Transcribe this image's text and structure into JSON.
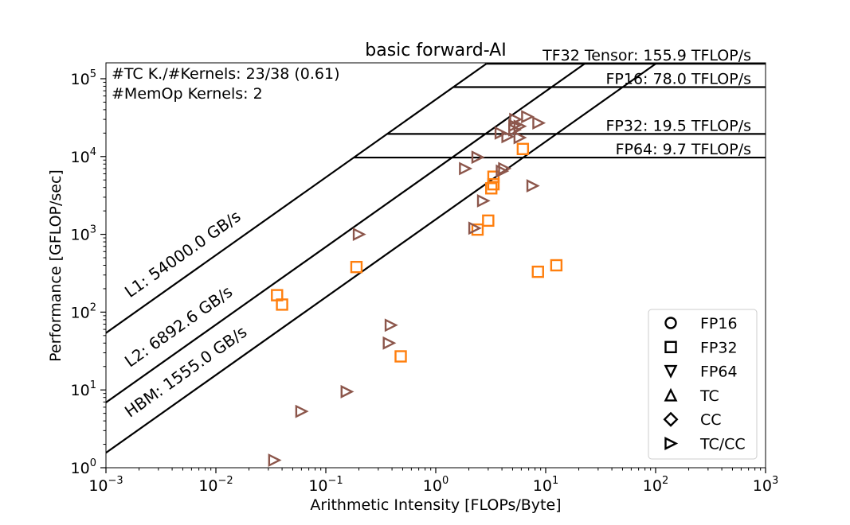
{
  "chart_data": {
    "type": "scatter",
    "title": "basic forward-AI",
    "xlabel": "Arithmetic Intensity [FLOPs/Byte]",
    "ylabel": "Performance [GFLOP/sec]",
    "xscale": "log",
    "yscale": "log",
    "xlim": [
      0.001,
      1000
    ],
    "ylim": [
      1,
      160000
    ],
    "x_ticks": [
      {
        "value": 0.001,
        "base": "10",
        "exp": "−3"
      },
      {
        "value": 0.01,
        "base": "10",
        "exp": "−2"
      },
      {
        "value": 0.1,
        "base": "10",
        "exp": "−1"
      },
      {
        "value": 1,
        "base": "10",
        "exp": "0"
      },
      {
        "value": 10,
        "base": "10",
        "exp": "1"
      },
      {
        "value": 100,
        "base": "10",
        "exp": "2"
      },
      {
        "value": 1000,
        "base": "10",
        "exp": "3"
      }
    ],
    "y_ticks": [
      {
        "value": 1,
        "base": "10",
        "exp": "0"
      },
      {
        "value": 10,
        "base": "10",
        "exp": "1"
      },
      {
        "value": 100,
        "base": "10",
        "exp": "2"
      },
      {
        "value": 1000,
        "base": "10",
        "exp": "3"
      },
      {
        "value": 10000,
        "base": "10",
        "exp": "4"
      },
      {
        "value": 100000,
        "base": "10",
        "exp": "5"
      }
    ],
    "annotations": [
      "#TC K./#Kernels:  23/38 (0.61)",
      "#MemOp Kernels: 2"
    ],
    "bandwidth_ceilings": [
      {
        "label": "L1: 54000.0 GB/s",
        "gbps": 54000.0
      },
      {
        "label": "L2: 6892.6 GB/s",
        "gbps": 6892.6
      },
      {
        "label": "HBM: 1555.0 GB/s",
        "gbps": 1555.0
      }
    ],
    "compute_ceilings": [
      {
        "label": "TF32 Tensor: 155.9 TFLOP/s",
        "gflops": 155900
      },
      {
        "label": "FP16: 78.0 TFLOP/s",
        "gflops": 78000
      },
      {
        "label": "FP32: 19.5 TFLOP/s",
        "gflops": 19500
      },
      {
        "label": "FP64: 9.7 TFLOP/s",
        "gflops": 9700
      }
    ],
    "legend": {
      "position": "lower-right",
      "entries": [
        {
          "label": "FP16",
          "marker": "circle"
        },
        {
          "label": "FP32",
          "marker": "square"
        },
        {
          "label": "FP64",
          "marker": "triangle-down"
        },
        {
          "label": "TC",
          "marker": "triangle-up"
        },
        {
          "label": "CC",
          "marker": "diamond"
        },
        {
          "label": "TC/CC",
          "marker": "triangle-right"
        }
      ]
    },
    "series": [
      {
        "marker": "square",
        "color": "#ff7f0e",
        "points": [
          [
            0.036,
            165
          ],
          [
            0.04,
            125
          ],
          [
            0.19,
            380
          ],
          [
            0.48,
            27
          ],
          [
            2.4,
            1150
          ],
          [
            3.0,
            1500
          ],
          [
            3.2,
            3900
          ],
          [
            3.35,
            4400
          ],
          [
            3.35,
            5500
          ],
          [
            6.2,
            12500
          ],
          [
            8.5,
            330
          ],
          [
            12.5,
            400
          ]
        ]
      },
      {
        "marker": "triangle-right",
        "color": "#8c564b",
        "points": [
          [
            0.034,
            1.25
          ],
          [
            0.06,
            5.3
          ],
          [
            0.155,
            9.5
          ],
          [
            0.375,
            40
          ],
          [
            0.39,
            68
          ],
          [
            0.2,
            1000
          ],
          [
            2.25,
            1200
          ],
          [
            2.7,
            2700
          ],
          [
            1.85,
            7000
          ],
          [
            2.4,
            9800
          ],
          [
            4.0,
            6500
          ],
          [
            4.2,
            7000
          ],
          [
            7.6,
            4200
          ],
          [
            3.9,
            20000
          ],
          [
            4.5,
            18000
          ],
          [
            5.2,
            22000
          ],
          [
            5.8,
            17500
          ],
          [
            5.2,
            25000
          ],
          [
            5.8,
            24500
          ],
          [
            5.3,
            30000
          ],
          [
            6.8,
            32500
          ],
          [
            8.6,
            27000
          ]
        ]
      }
    ]
  }
}
